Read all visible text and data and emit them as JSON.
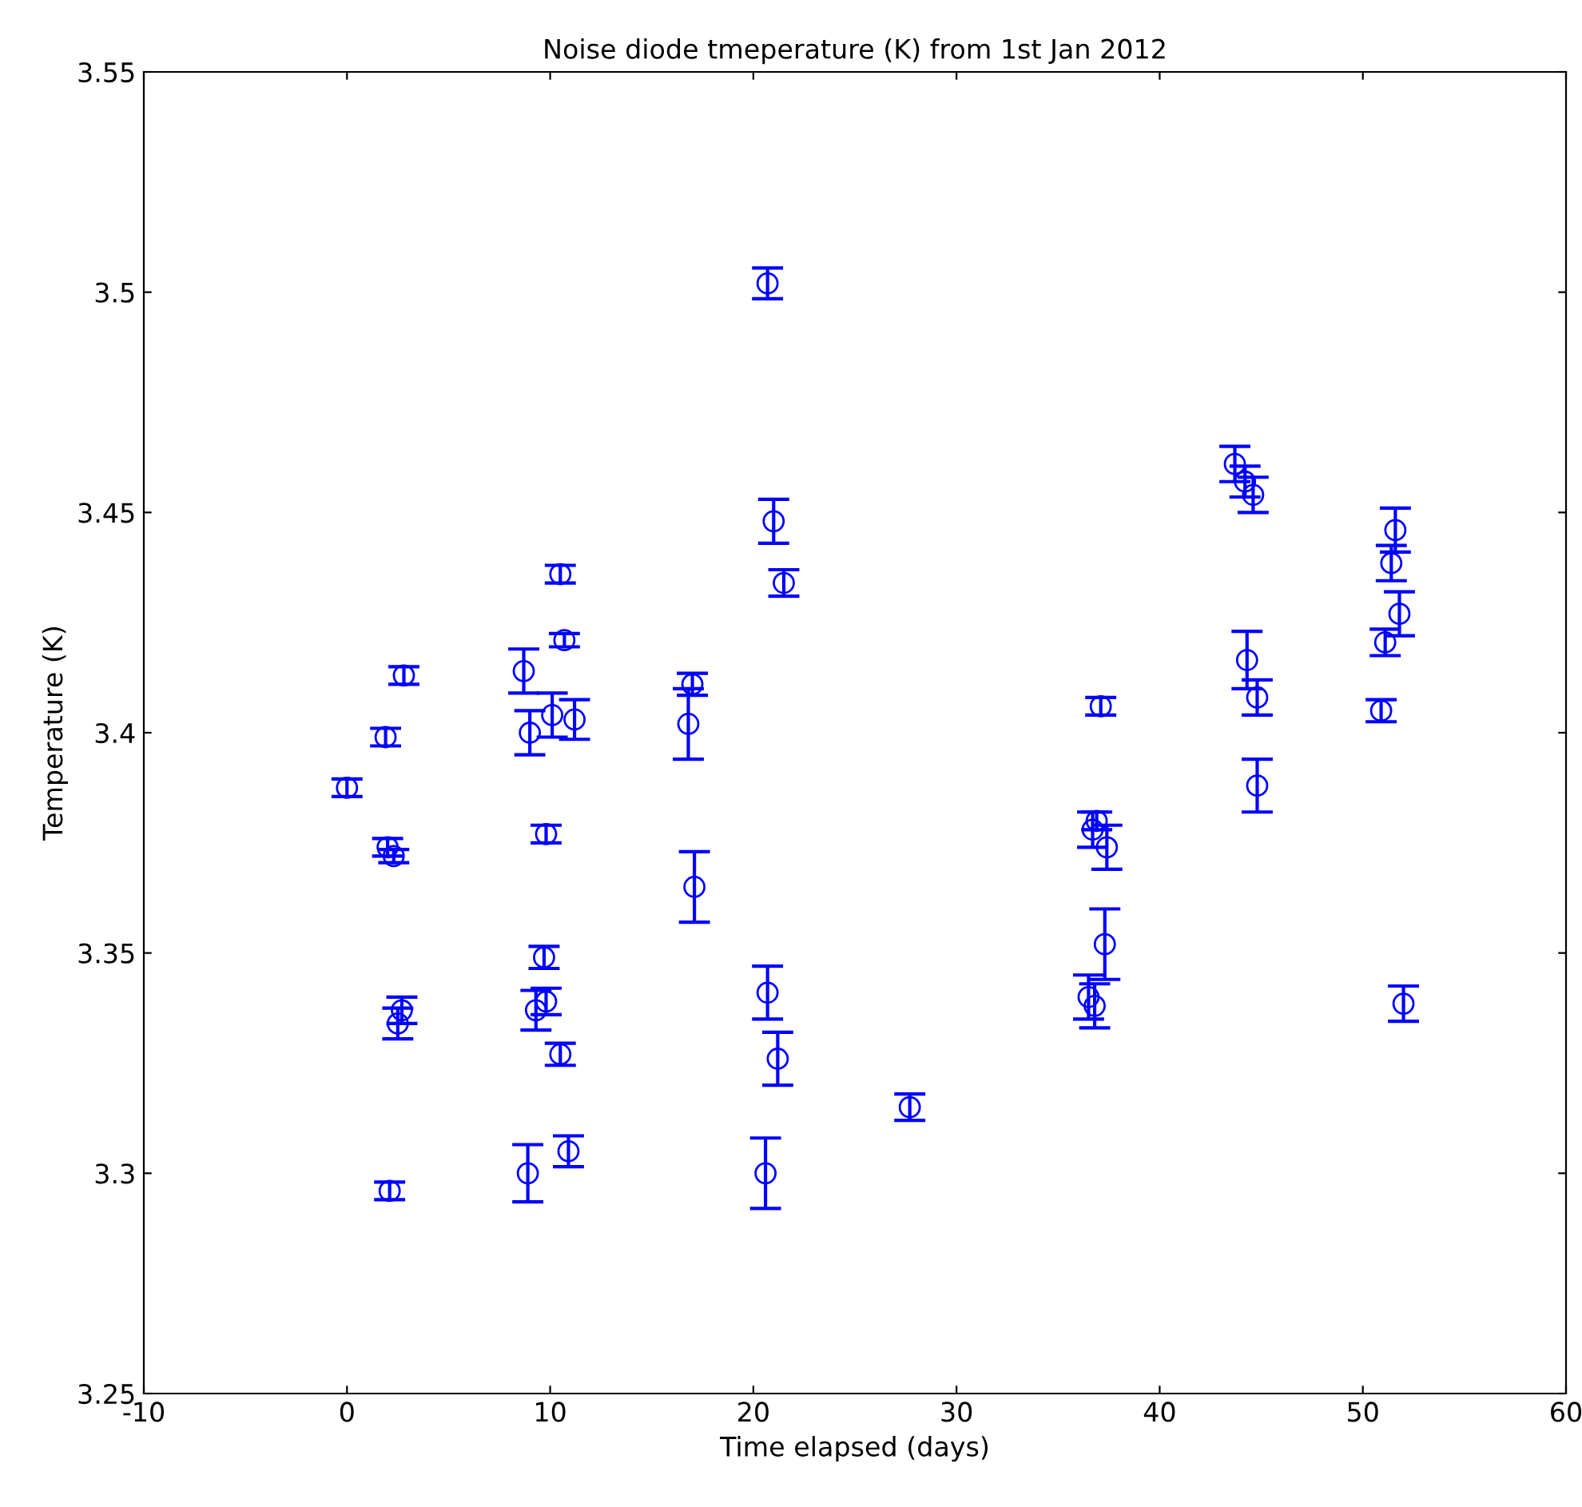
{
  "chart_data": {
    "type": "scatter",
    "title": "Noise diode tmeperature (K) from 1st Jan 2012",
    "xlabel": "Time elapsed (days)",
    "ylabel": "Temperature (K)",
    "xlim": [
      -10,
      60
    ],
    "xticks": [
      -10,
      0,
      10,
      20,
      30,
      40,
      50,
      60
    ],
    "ylim": [
      3.25,
      3.55
    ],
    "yticks": [
      3.25,
      3.3,
      3.35,
      3.4,
      3.45,
      3.5,
      3.55
    ],
    "grid": false,
    "marker": "circle",
    "color": "#0000ff",
    "x": [
      0,
      1.9,
      2.0,
      2.3,
      2.1,
      2.5,
      2.7,
      2.8,
      8.7,
      9.0,
      8.9,
      9.3,
      9.8,
      9.7,
      9.8,
      10.1,
      10.5,
      10.7,
      10.5,
      10.9,
      11.2,
      16.8,
      17.0,
      17.1,
      20.7,
      21.0,
      21.5,
      20.7,
      21.2,
      20.6,
      27.7,
      36.5,
      36.8,
      36.7,
      36.9,
      37.4,
      37.3,
      37.1,
      43.7,
      44.2,
      44.6,
      44.3,
      44.8,
      44.8,
      50.9,
      51.1,
      51.4,
      51.6,
      51.8,
      52.0
    ],
    "values": [
      3.3875,
      3.399,
      3.374,
      3.372,
      3.296,
      3.334,
      3.337,
      3.413,
      3.414,
      3.4,
      3.3,
      3.337,
      3.339,
      3.349,
      3.377,
      3.404,
      3.436,
      3.421,
      3.327,
      3.305,
      3.403,
      3.402,
      3.411,
      3.365,
      3.502,
      3.448,
      3.434,
      3.341,
      3.326,
      3.3,
      3.315,
      3.34,
      3.338,
      3.378,
      3.38,
      3.374,
      3.352,
      3.406,
      3.461,
      3.457,
      3.454,
      3.4165,
      3.408,
      3.388,
      3.405,
      3.4205,
      3.4385,
      3.446,
      3.427,
      3.3385
    ],
    "errors": [
      0.002,
      0.002,
      0.002,
      0.0015,
      0.002,
      0.0035,
      0.003,
      0.002,
      0.005,
      0.005,
      0.0065,
      0.0045,
      0.003,
      0.0025,
      0.002,
      0.005,
      0.002,
      0.0015,
      0.0025,
      0.0035,
      0.0045,
      0.008,
      0.0025,
      0.008,
      0.0035,
      0.005,
      0.003,
      0.006,
      0.006,
      0.008,
      0.003,
      0.005,
      0.005,
      0.004,
      0.002,
      0.005,
      0.008,
      0.002,
      0.004,
      0.0035,
      0.004,
      0.0065,
      0.004,
      0.006,
      0.0025,
      0.003,
      0.004,
      0.005,
      0.005,
      0.004
    ]
  }
}
